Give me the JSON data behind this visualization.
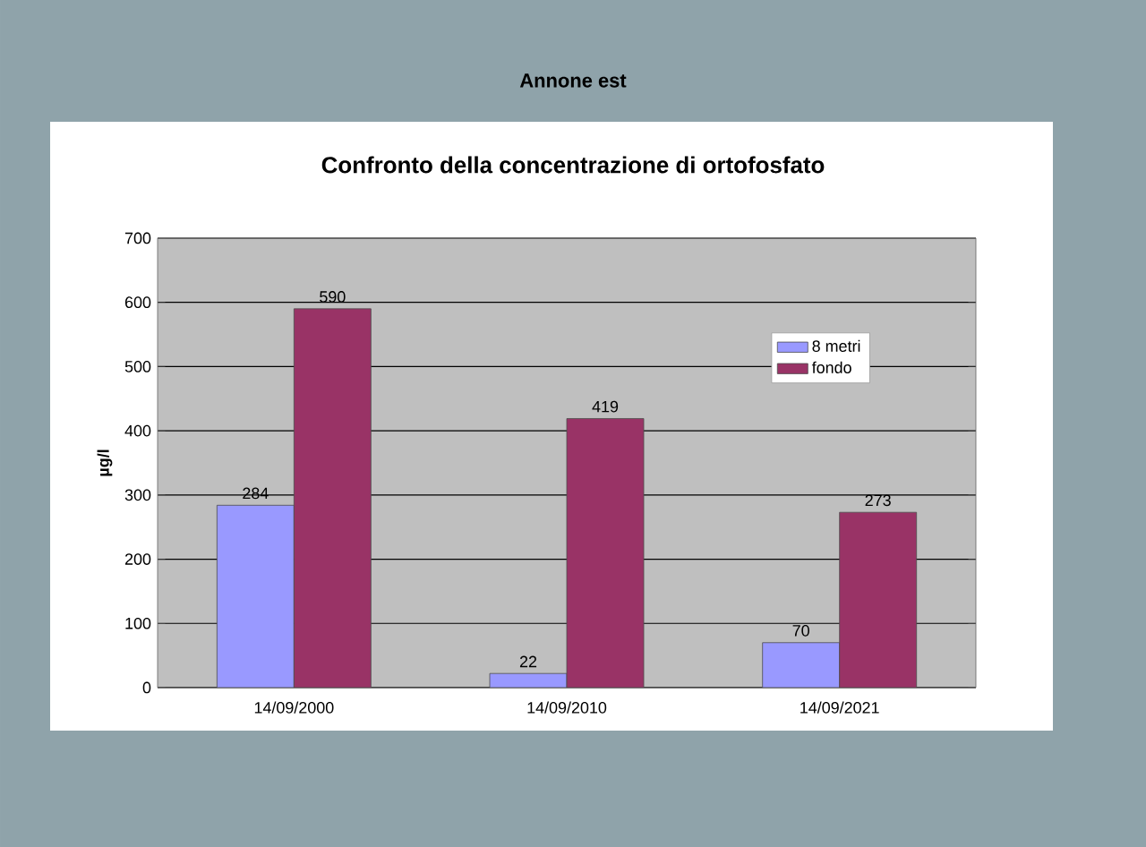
{
  "chart_data": {
    "type": "bar",
    "title": "Annone est",
    "subtitle": "Confronto della concentrazione di ortofosfato",
    "ylabel": "µg/l",
    "categories": [
      "14/09/2000",
      "14/09/2010",
      "14/09/2021"
    ],
    "series": [
      {
        "name": "8 metri",
        "color": "#9999ff",
        "values": [
          284,
          22,
          70
        ]
      },
      {
        "name": "fondo",
        "color": "#993366",
        "values": [
          590,
          419,
          273
        ]
      }
    ],
    "ylim": [
      0,
      700
    ],
    "yticks": [
      0,
      100,
      200,
      300,
      400,
      500,
      600,
      700
    ],
    "grid": "y",
    "legend": "top right",
    "data_labels": true
  }
}
